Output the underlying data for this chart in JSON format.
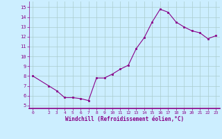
{
  "x": [
    0,
    2,
    3,
    4,
    5,
    6,
    7,
    8,
    9,
    10,
    11,
    12,
    13,
    14,
    15,
    16,
    17,
    18,
    19,
    20,
    21,
    22,
    23
  ],
  "y": [
    8.0,
    7.0,
    6.5,
    5.8,
    5.8,
    5.7,
    5.5,
    7.8,
    7.8,
    8.2,
    8.7,
    9.1,
    10.8,
    11.9,
    13.5,
    14.8,
    14.5,
    13.5,
    13.0,
    12.6,
    12.4,
    11.8,
    12.1
  ],
  "x_ticks": [
    0,
    2,
    3,
    4,
    5,
    6,
    7,
    8,
    9,
    10,
    11,
    12,
    13,
    14,
    15,
    16,
    17,
    18,
    19,
    20,
    21,
    22,
    23
  ],
  "y_ticks": [
    5,
    6,
    7,
    8,
    9,
    10,
    11,
    12,
    13,
    14,
    15
  ],
  "ylim": [
    4.7,
    15.6
  ],
  "xlim": [
    -0.5,
    23.5
  ],
  "xlabel": "Windchill (Refroidissement éolien,°C)",
  "line_color": "#880088",
  "marker_color": "#880088",
  "bg_color": "#cceeff",
  "grid_color": "#aacccc",
  "axis_color": "#880088"
}
